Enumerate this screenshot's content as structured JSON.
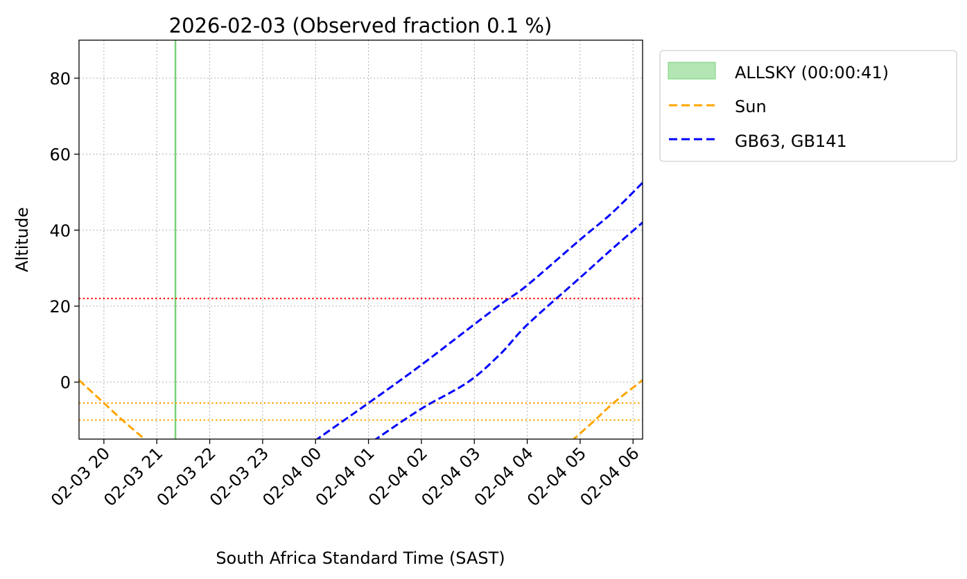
{
  "chart_data": {
    "type": "line",
    "title": "2026-02-03 (Observed fraction 0.1 %)",
    "xlabel": "South Africa Standard Time (SAST)",
    "ylabel": "Altitude",
    "x_units": "hours since 2026-02-03 00:00 SAST",
    "xlim": [
      19.53,
      30.18
    ],
    "ylim": [
      -15,
      90
    ],
    "grid": true,
    "xticks": [
      {
        "value": 20,
        "label": "02-03 20"
      },
      {
        "value": 21,
        "label": "02-03 21"
      },
      {
        "value": 22,
        "label": "02-03 22"
      },
      {
        "value": 23,
        "label": "02-03 23"
      },
      {
        "value": 24,
        "label": "02-04 00"
      },
      {
        "value": 25,
        "label": "02-04 01"
      },
      {
        "value": 26,
        "label": "02-04 02"
      },
      {
        "value": 27,
        "label": "02-04 03"
      },
      {
        "value": 28,
        "label": "02-04 04"
      },
      {
        "value": 29,
        "label": "02-04 05"
      },
      {
        "value": 30,
        "label": "02-04 06"
      }
    ],
    "yticks": [
      {
        "value": 0,
        "label": "0"
      },
      {
        "value": 20,
        "label": "20"
      },
      {
        "value": 40,
        "label": "40"
      },
      {
        "value": 60,
        "label": "60"
      },
      {
        "value": 80,
        "label": "80"
      }
    ],
    "hlines": [
      {
        "y": 22,
        "color": "#ff0000",
        "style": "dotted"
      },
      {
        "y": -5.5,
        "color": "#ffa500",
        "style": "dotted"
      },
      {
        "y": -10,
        "color": "#ffa500",
        "style": "dotted"
      }
    ],
    "spans": [
      {
        "name": "ALLSKY (00:00:41)",
        "x_start": 21.345,
        "x_end": 21.356,
        "fill": "#b3e6b3",
        "edge": "#77d077"
      }
    ],
    "series": [
      {
        "name": "Sun",
        "color": "#ffa500",
        "style": "dashed",
        "segments": [
          {
            "x": [
              19.53,
              20.0,
              20.35,
              20.81
            ],
            "y": [
              0.5,
              -5.5,
              -10,
              -15.5
            ]
          },
          {
            "x": [
              28.84,
              29.28,
              29.63,
              30.18
            ],
            "y": [
              -15.5,
              -10,
              -5.5,
              0.5
            ]
          }
        ]
      },
      {
        "name": "GB63",
        "color": "#0000ff",
        "style": "dashed",
        "segments": [
          {
            "x": [
              23.98,
              24.9,
              25.9,
              26.7,
              27.5,
              28.0,
              29.0,
              29.6,
              30.18
            ],
            "y": [
              -15.5,
              -6.5,
              3.5,
              12,
              20.5,
              25.5,
              37.5,
              44.5,
              52.5
            ]
          }
        ]
      },
      {
        "name": "GB141",
        "color": "#0000ff",
        "style": "dashed",
        "segments": [
          {
            "x": [
              25.09,
              26.0,
              26.88,
              27.5,
              28.0,
              29.0,
              29.6,
              30.18
            ],
            "y": [
              -15.5,
              -7,
              0,
              7.5,
              15.1,
              27.5,
              35,
              42
            ]
          }
        ]
      }
    ],
    "legend": {
      "placement": "outside-top-right",
      "entries": [
        {
          "label": "ALLSKY (00:00:41)",
          "kind": "patch",
          "color": "#b3e6b3"
        },
        {
          "label": "Sun",
          "kind": "dashed-line",
          "color": "#ffa500"
        },
        {
          "label": "GB63, GB141",
          "kind": "dashed-line",
          "color": "#0000ff"
        }
      ]
    }
  }
}
